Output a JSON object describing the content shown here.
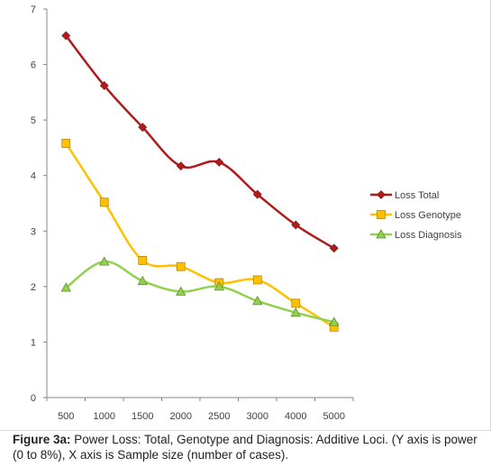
{
  "chart_data": {
    "type": "line",
    "categories": [
      "500",
      "1000",
      "1500",
      "2000",
      "2500",
      "3000",
      "4000",
      "5000"
    ],
    "series": [
      {
        "name": "Loss Total",
        "color": "#b01c1c",
        "marker": "diamond",
        "values": [
          6.52,
          5.62,
          4.87,
          4.17,
          4.24,
          3.66,
          3.11,
          2.69
        ]
      },
      {
        "name": "Loss Genotype",
        "color": "#ffc000",
        "marker": "square",
        "values": [
          4.58,
          3.52,
          2.47,
          2.36,
          2.07,
          2.12,
          1.7,
          1.27
        ]
      },
      {
        "name": "Loss Diagnosis",
        "color": "#92d050",
        "marker": "triangle",
        "values": [
          1.98,
          2.45,
          2.1,
          1.91,
          2.0,
          1.74,
          1.53,
          1.36
        ]
      }
    ],
    "ylim": [
      0,
      7
    ],
    "yticks": [
      "0",
      "1",
      "2",
      "3",
      "4",
      "5",
      "6",
      "7"
    ],
    "grid": false,
    "legend_position": "right"
  },
  "caption": {
    "label": "Figure 3a:",
    "text": " Power Loss: Total, Genotype and Diagnosis: Additive Loci. (Y axis is power (0 to 8%), X axis is Sample size (number of cases)."
  }
}
